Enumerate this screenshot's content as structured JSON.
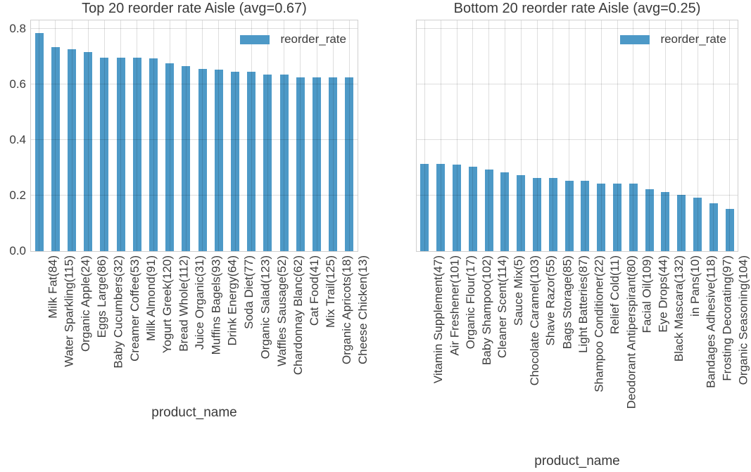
{
  "colors": {
    "bar": "#4d99c7",
    "grid": "rgba(0,0,0,0.13)",
    "border": "#cfcfcf",
    "text": "#3a3a3a"
  },
  "chart_data": [
    {
      "type": "bar",
      "title": "Top 20 reorder rate Aisle (avg=0.67)",
      "xlabel": "product_name",
      "ylabel": "",
      "legend_label": "reorder_rate",
      "legend_position": "upper right",
      "grid": true,
      "ylim": [
        0,
        0.83
      ],
      "yticks": [
        "0.0",
        "0.2",
        "0.4",
        "0.6",
        "0.8"
      ],
      "show_ytick_labels": true,
      "categories": [
        "Milk Fat(84)",
        "Water Sparkling(115)",
        "Organic Apple(24)",
        "Eggs Large(86)",
        "Baby Cucumbers(32)",
        "Creamer Coffee(53)",
        "Milk Almond(91)",
        "Yogurt Greek(120)",
        "Bread Whole(112)",
        "Juice Organic(31)",
        "Muffins Bagels(93)",
        "Drink Energy(64)",
        "Soda Diet(77)",
        "Organic Salad(123)",
        "Waffles Sausage(52)",
        "Chardonnay Blanc(62)",
        "Cat Food(41)",
        "Mix Trail(125)",
        "Organic Apricots(18)",
        "Cheese Chicken(13)"
      ],
      "values": [
        0.785,
        0.735,
        0.725,
        0.715,
        0.695,
        0.695,
        0.695,
        0.694,
        0.676,
        0.665,
        0.655,
        0.654,
        0.645,
        0.645,
        0.635,
        0.634,
        0.625,
        0.625,
        0.624,
        0.624
      ]
    },
    {
      "type": "bar",
      "title": "Bottom 20 reorder rate Aisle (avg=0.25)",
      "xlabel": "product_name",
      "ylabel": "",
      "legend_label": "reorder_rate",
      "legend_position": "upper right",
      "grid": true,
      "ylim": [
        0,
        0.83
      ],
      "yticks": [
        "0.0",
        "0.2",
        "0.4",
        "0.6",
        "0.8"
      ],
      "show_ytick_labels": false,
      "categories": [
        "Vitamin Supplement(47)",
        "Air Freshener(101)",
        "Organic Flour(17)",
        "Baby Shampoo(102)",
        "Cleaner Scent(114)",
        "Sauce Mix(5)",
        "Chocolate Caramel(103)",
        "Shave Razor(55)",
        "Bags Storage(85)",
        "Light Batteries(87)",
        "Shampoo Conditioner(22)",
        "Relief Cold(11)",
        "Deodorant Antiperspirant(80)",
        "Facial Oil(109)",
        "Eye Drops(44)",
        "Black Mascara(132)",
        "in Pans(10)",
        "Bandages Adhesive(118)",
        "Frosting Decorating(97)",
        "Organic Seasoning(104)"
      ],
      "values": [
        0.313,
        0.313,
        0.312,
        0.303,
        0.294,
        0.284,
        0.274,
        0.264,
        0.263,
        0.253,
        0.252,
        0.243,
        0.242,
        0.242,
        0.223,
        0.213,
        0.203,
        0.193,
        0.173,
        0.153
      ]
    }
  ]
}
